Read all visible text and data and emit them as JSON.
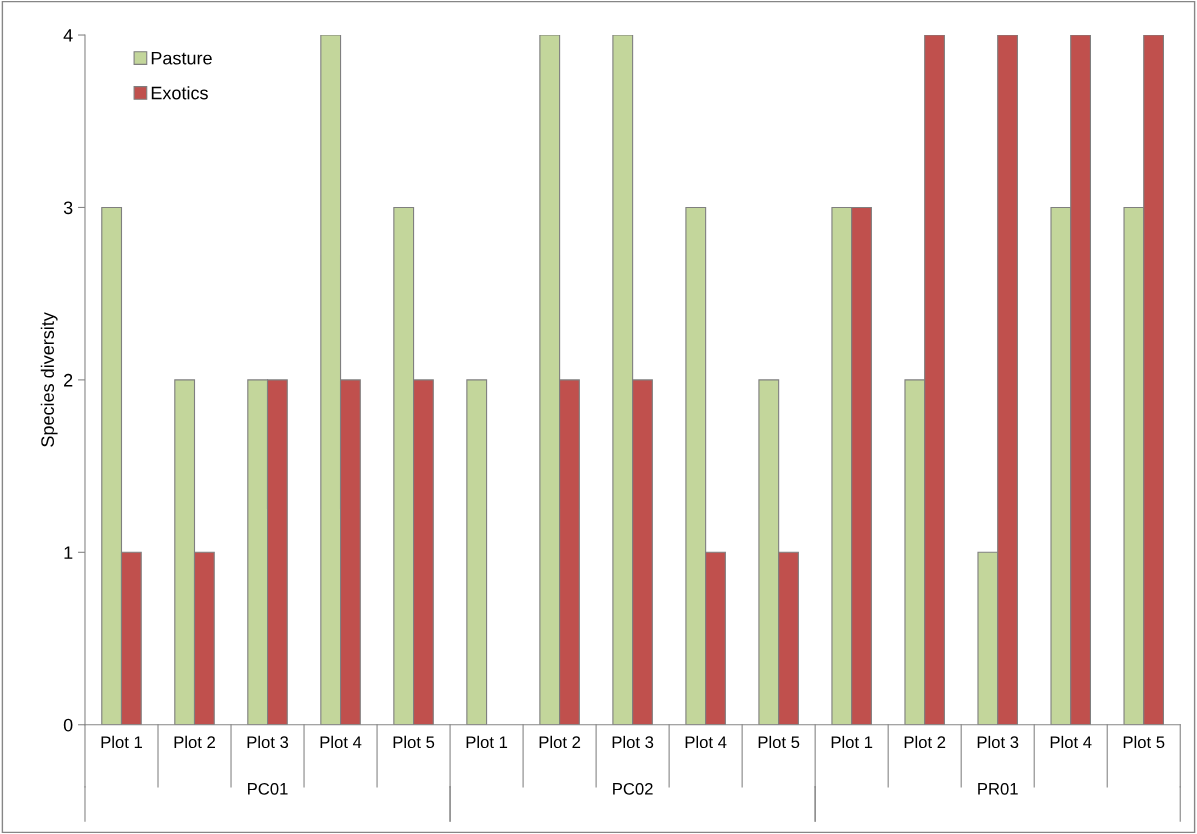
{
  "chart_data": {
    "type": "bar",
    "ylabel": "Species diversity",
    "categories": [
      "Plot 1",
      "Plot 2",
      "Plot 3",
      "Plot 4",
      "Plot 5",
      "Plot 1",
      "Plot 2",
      "Plot 3",
      "Plot 4",
      "Plot 5",
      "Plot 1",
      "Plot 2",
      "Plot 3",
      "Plot 4",
      "Plot 5"
    ],
    "series": [
      {
        "name": "Pasture",
        "color": "#c3d69b",
        "values": [
          3,
          2,
          2,
          4,
          3,
          2,
          4,
          4,
          3,
          2,
          3,
          2,
          1,
          3,
          3
        ]
      },
      {
        "name": "Exotics",
        "color": "#c0504d",
        "values": [
          1,
          1,
          2,
          2,
          2,
          0,
          2,
          2,
          1,
          1,
          3,
          4,
          4,
          4,
          4
        ]
      }
    ],
    "annotations": [
      "PC01",
      "PC02",
      "PR01"
    ],
    "ylim": [
      0,
      4
    ],
    "yticks": [
      0,
      1,
      2,
      3,
      4
    ],
    "grid": false,
    "legend": "top left"
  }
}
